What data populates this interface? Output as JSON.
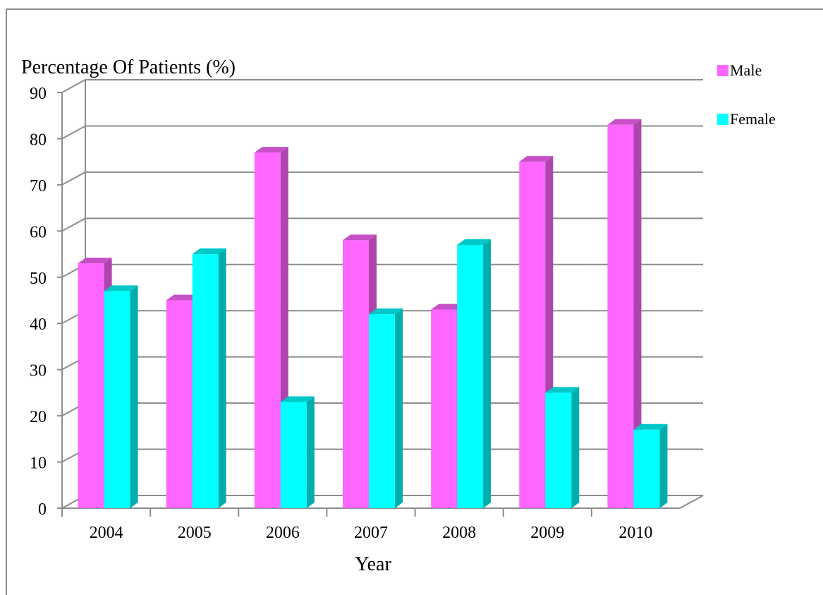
{
  "chart_data": {
    "type": "bar",
    "title": "",
    "xlabel": "Year",
    "ylabel": "Percentage Of Patients (%)",
    "categories": [
      "2004",
      "2005",
      "2006",
      "2007",
      "2008",
      "2009",
      "2010"
    ],
    "series": [
      {
        "name": "Male",
        "values": [
          53,
          45,
          77,
          58,
          43,
          75,
          83
        ],
        "color": "#ff66ff"
      },
      {
        "name": "Female",
        "values": [
          47,
          55,
          23,
          42,
          57,
          25,
          17
        ],
        "color": "#00ffff"
      }
    ],
    "ylim": [
      0,
      90
    ],
    "yticks": [
      "0",
      "10",
      "20",
      "30",
      "40",
      "50",
      "60",
      "70",
      "80",
      "90"
    ],
    "grid": true,
    "legend_position": "top-right",
    "style": "3d-clustered-column"
  }
}
